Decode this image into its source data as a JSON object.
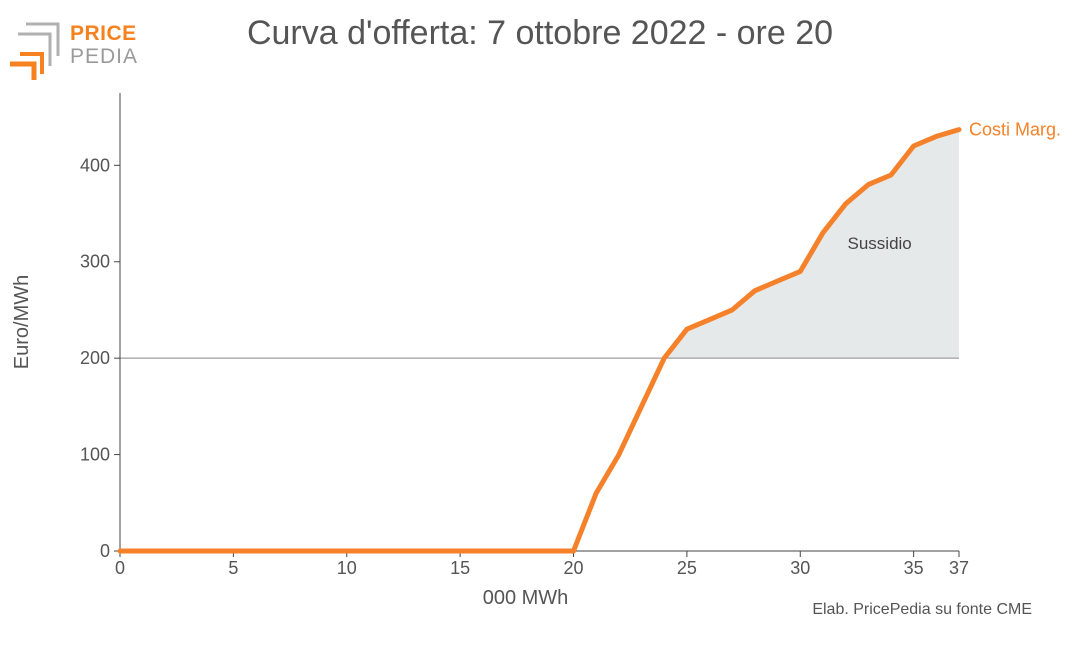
{
  "logo": {
    "line1": "PRICE",
    "line2": "PEDIA"
  },
  "source_note": "Elab. PricePedia su fonte CME",
  "colors": {
    "curve": "#f5822a",
    "subsidy_fill": "#e6e9ea",
    "axis": "#444444",
    "text": "#555555"
  },
  "chart_data": {
    "type": "line",
    "title": "Curva d'offerta: 7 ottobre 2022 - ore 20",
    "xlabel": "000 MWh",
    "ylabel": "Euro/MWh",
    "xlim": [
      0,
      37
    ],
    "ylim": [
      0,
      475
    ],
    "x_ticks": [
      0,
      5,
      10,
      15,
      20,
      25,
      30,
      35,
      37
    ],
    "y_ticks": [
      0,
      100,
      200,
      300,
      400
    ],
    "grid": false,
    "reference_line": {
      "y": 200
    },
    "series": [
      {
        "name": "Costi Marg.",
        "x": [
          0,
          20,
          21,
          22,
          23,
          24,
          25,
          26,
          27,
          28,
          29,
          30,
          31,
          32,
          33,
          34,
          35,
          36,
          37
        ],
        "y": [
          0,
          0,
          60,
          100,
          150,
          200,
          230,
          240,
          250,
          270,
          280,
          290,
          330,
          360,
          380,
          390,
          420,
          430,
          437
        ]
      }
    ],
    "shaded_area": {
      "label": "Sussidio",
      "from_y": 200,
      "x_start": 24,
      "x_end": 37
    }
  }
}
